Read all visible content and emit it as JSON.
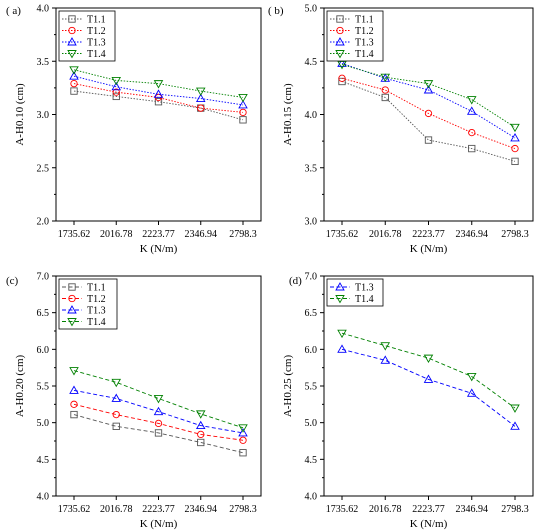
{
  "chart_data": [
    {
      "type": "line",
      "panel_label": "( a)",
      "xlabel": "K (N/m)",
      "ylabel": "A-H0.10 (cm)",
      "categories": [
        "1735.62",
        "2016.78",
        "2223.77",
        "2346.94",
        "2798.3"
      ],
      "ylim": [
        2.0,
        4.0
      ],
      "yticks": [
        "2.0",
        "2.5",
        "3.0",
        "3.5",
        "4.0"
      ],
      "legend": "top-left",
      "series": [
        {
          "name": "T1.1",
          "color": "#555555",
          "marker": "square",
          "values": [
            3.22,
            3.17,
            3.12,
            3.06,
            2.95
          ]
        },
        {
          "name": "T1.2",
          "color": "#ff0000",
          "marker": "circle",
          "values": [
            3.29,
            3.21,
            3.16,
            3.06,
            3.02
          ]
        },
        {
          "name": "T1.3",
          "color": "#0000ff",
          "marker": "triangle-up",
          "values": [
            3.36,
            3.26,
            3.19,
            3.15,
            3.09
          ]
        },
        {
          "name": "T1.4",
          "color": "#008000",
          "marker": "triangle-down",
          "values": [
            3.42,
            3.32,
            3.29,
            3.22,
            3.16
          ]
        }
      ]
    },
    {
      "type": "line",
      "panel_label": "( b)",
      "xlabel": "K (N/m)",
      "ylabel": "A-H0.15 (cm)",
      "categories": [
        "1735.62",
        "2016.78",
        "2223.77",
        "2346.94",
        "2798.3"
      ],
      "ylim": [
        3.0,
        5.0
      ],
      "yticks": [
        "3.0",
        "3.5",
        "4.0",
        "4.5",
        "5.0"
      ],
      "legend": "top-left",
      "series": [
        {
          "name": "T1.1",
          "color": "#555555",
          "marker": "square",
          "values": [
            4.31,
            4.16,
            3.76,
            3.68,
            3.56
          ]
        },
        {
          "name": "T1.2",
          "color": "#ff0000",
          "marker": "circle",
          "values": [
            4.34,
            4.23,
            4.01,
            3.83,
            3.68
          ]
        },
        {
          "name": "T1.3",
          "color": "#0000ff",
          "marker": "triangle-up",
          "values": [
            4.48,
            4.34,
            4.23,
            4.03,
            3.78
          ]
        },
        {
          "name": "T1.4",
          "color": "#008000",
          "marker": "triangle-down",
          "values": [
            4.47,
            4.35,
            4.29,
            4.14,
            3.88
          ]
        }
      ]
    },
    {
      "type": "line",
      "panel_label": "(c)",
      "xlabel": "K (N/m)",
      "ylabel": "A-H0.20 (cm)",
      "categories": [
        "1735.62",
        "2016.78",
        "2223.77",
        "2346.94",
        "2798.3"
      ],
      "ylim": [
        4.0,
        7.0
      ],
      "yticks": [
        "4.0",
        "4.5",
        "5.0",
        "5.5",
        "6.0",
        "6.5",
        "7.0"
      ],
      "legend": "top-left",
      "series": [
        {
          "name": "T1.1",
          "color": "#555555",
          "marker": "square",
          "values": [
            5.11,
            4.95,
            4.86,
            4.73,
            4.59
          ]
        },
        {
          "name": "T1.2",
          "color": "#ff0000",
          "marker": "circle",
          "values": [
            5.25,
            5.11,
            4.99,
            4.84,
            4.76
          ]
        },
        {
          "name": "T1.3",
          "color": "#0000ff",
          "marker": "triangle-up",
          "values": [
            5.44,
            5.33,
            5.15,
            4.96,
            4.86
          ]
        },
        {
          "name": "T1.4",
          "color": "#008000",
          "marker": "triangle-down",
          "values": [
            5.71,
            5.55,
            5.33,
            5.12,
            4.93
          ]
        }
      ]
    },
    {
      "type": "line",
      "panel_label": "(d)",
      "xlabel": "K (N/m)",
      "ylabel": "A-H0.25 (cm)",
      "categories": [
        "1735.62",
        "2016.78",
        "2223.77",
        "2346.94",
        "2798.3"
      ],
      "ylim": [
        4.0,
        7.0
      ],
      "yticks": [
        "4.0",
        "4.5",
        "5.0",
        "5.5",
        "6.0",
        "6.5",
        "7.0"
      ],
      "legend": "top-left",
      "series": [
        {
          "name": "T1.3",
          "color": "#0000ff",
          "marker": "triangle-up",
          "values": [
            6.0,
            5.85,
            5.59,
            5.4,
            4.95
          ]
        },
        {
          "name": "T1.4",
          "color": "#008000",
          "marker": "triangle-down",
          "values": [
            6.22,
            6.05,
            5.88,
            5.63,
            5.2
          ]
        }
      ]
    }
  ]
}
